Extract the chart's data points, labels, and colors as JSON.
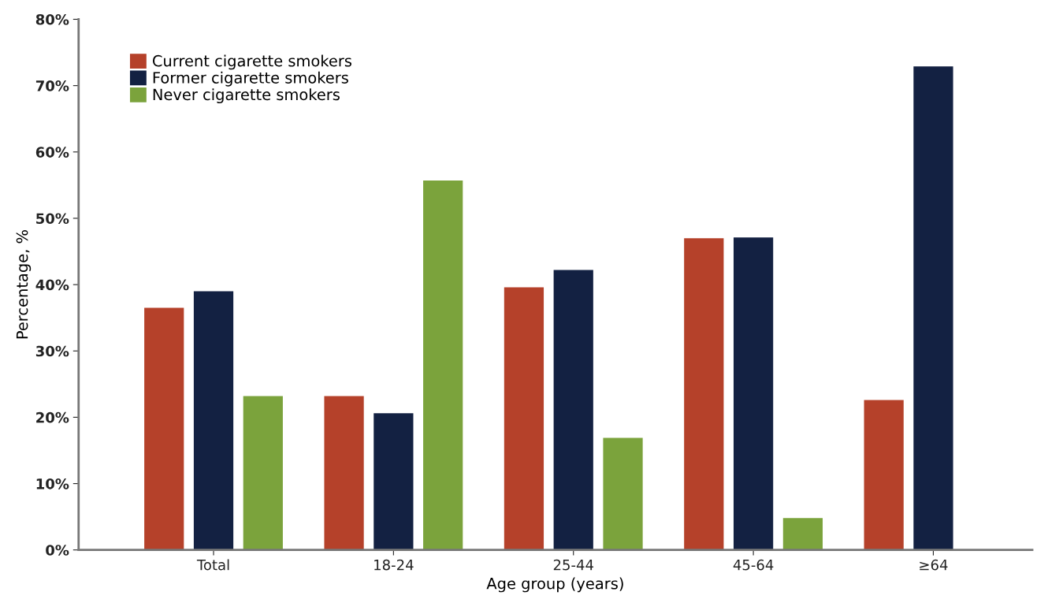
{
  "chart_data": {
    "type": "bar",
    "xlabel": "Age group (years)",
    "ylabel": "Percentage, %",
    "categories": [
      "Total",
      "18-24",
      "25-44",
      "45-64",
      "≥64"
    ],
    "series": [
      {
        "name": "Current cigarette smokers",
        "color": "#b5412a",
        "values": [
          36.5,
          23.2,
          39.6,
          47.0,
          22.6
        ]
      },
      {
        "name": "Former cigarette smokers",
        "color": "#132142",
        "values": [
          39.0,
          20.6,
          42.2,
          47.1,
          72.9
        ]
      },
      {
        "name": "Never cigarette smokers",
        "color": "#7ba33c",
        "values": [
          23.2,
          55.7,
          16.9,
          4.8,
          null
        ]
      }
    ],
    "ylim": [
      0,
      80
    ],
    "yticks": [
      {
        "value": 0,
        "label": "0%"
      },
      {
        "value": 10,
        "label": "10%"
      },
      {
        "value": 20,
        "label": "20%"
      },
      {
        "value": 30,
        "label": "30%"
      },
      {
        "value": 40,
        "label": "40%"
      },
      {
        "value": 50,
        "label": "50%"
      },
      {
        "value": 60,
        "label": "60%"
      },
      {
        "value": 70,
        "label": "70%"
      },
      {
        "value": 80,
        "label": "80%"
      }
    ],
    "grid": false,
    "legend": "top left"
  }
}
